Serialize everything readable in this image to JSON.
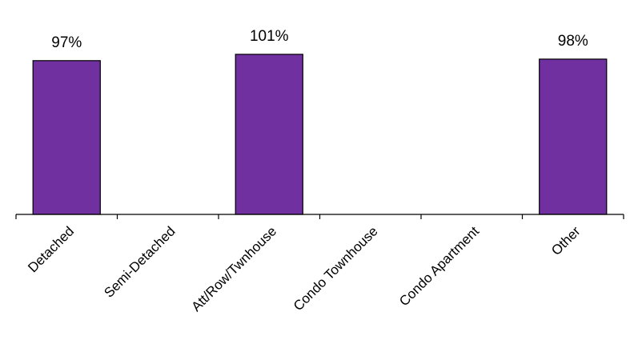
{
  "chart_data": {
    "type": "bar",
    "categories": [
      "Detached",
      "Semi-Detached",
      "Att/Row/Twnhouse",
      "Condo Townhouse",
      "Condo Apartment",
      "Other"
    ],
    "values": [
      97,
      null,
      101,
      null,
      null,
      98
    ],
    "data_labels": [
      "97%",
      "",
      "101%",
      "",
      "",
      "98%"
    ],
    "unit": "%",
    "ylim": [
      0,
      105
    ],
    "bar_color": "#7030a0",
    "grid": false,
    "legend": "none",
    "title": "",
    "xlabel": "",
    "ylabel": ""
  }
}
